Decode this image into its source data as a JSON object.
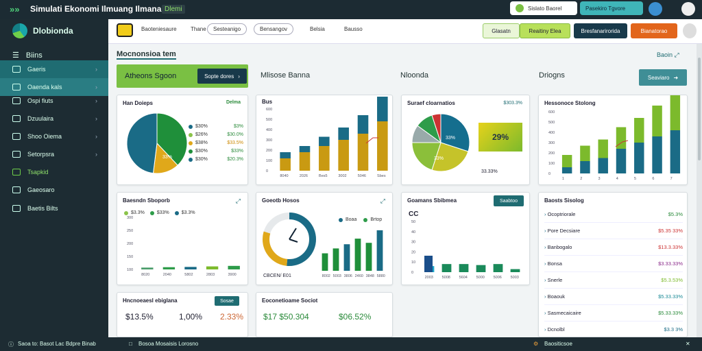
{
  "window": {
    "title": "Simulati Ekonomi Ilmuang Ilmana",
    "badge": "Dlemi"
  },
  "top_right": {
    "pill1": "Sislato Baorel",
    "pill2": "Pasekiro Tgvore"
  },
  "sidebar": {
    "brand": "Dlobionda",
    "menu_label": "Biins",
    "items": [
      {
        "label": "Gaeris"
      },
      {
        "label": "Oaenda kals"
      },
      {
        "label": "Ospi fiuts"
      },
      {
        "label": "Dzuulaira"
      },
      {
        "label": "Shoo Oiema"
      },
      {
        "label": "Setorpsra"
      },
      {
        "label": "Tsapkid"
      },
      {
        "label": "Gaeosaro"
      },
      {
        "label": "Baetis Bilts"
      }
    ]
  },
  "toolbar": {
    "tabs": [
      "Baoteniesaure",
      "Thane",
      "Sesteanigo",
      "Bensangov",
      "Belsia",
      "Bausso"
    ],
    "btn1": "Glasatn",
    "btn2": "Reaitiny Elea",
    "btn3": "Bresfanarirorida",
    "btn4": "Bianatorao"
  },
  "main": {
    "title": "Mocnonsioa tem",
    "action": "Baoin",
    "banner": {
      "label": "Atheons Sgoon",
      "button": "Sopte dores"
    },
    "sec2": "Mlisose Banna",
    "sec3": "Nloonda",
    "sec4": "Driogns",
    "sec4_btn": "Seaviaro"
  },
  "cards": {
    "pie1": {
      "title": "Han Doieps",
      "tag": "Delma",
      "center": "33%",
      "legend": [
        {
          "l": "$30%",
          "v": "$3%"
        },
        {
          "l": "$26%",
          "v": "$30.0%"
        },
        {
          "l": "$38%",
          "v": "$33.5%"
        },
        {
          "l": "$30%",
          "v": "$33%"
        },
        {
          "l": "$30%",
          "v": "$20.3%"
        }
      ]
    },
    "bar1": {
      "title": "Bus"
    },
    "pie2": {
      "title": "Suraef cloarnatios",
      "tag": "$303.3%",
      "center1": "33%",
      "center2": "33%",
      "badge": "29%",
      "foot": "33.33%"
    },
    "bar2": {
      "title": "Hessonoce Stolong"
    },
    "bar3": {
      "title": "Baesndn Sboporb",
      "l1": "$3.3%",
      "l2": "$33%",
      "l3": "$3.3%"
    },
    "donut": {
      "title": "Goeotb Hosos",
      "l1": "Boaa",
      "l2": "Brtop",
      "foot": "CBCEN/ E01"
    },
    "bar4": {
      "title": "Goamans Sbibmea",
      "btn": "Saabtoo",
      "lead": "CC"
    },
    "list": {
      "title": "Baosts Sisolog",
      "rows": [
        {
          "l": "Ocoptriorale",
          "v": "$5.3%"
        },
        {
          "l": "Pore Decsiare",
          "v": "$5.35 33%"
        },
        {
          "l": "Banbogalo",
          "v": "$13.3.33%"
        },
        {
          "l": "Bonsa",
          "v": "$3.33.33%"
        },
        {
          "l": "Snerle",
          "v": "$5.3.53%"
        },
        {
          "l": "Boaouk",
          "v": "$5.33.33%"
        },
        {
          "l": "Sasmecaicaire",
          "v": "$5.33.33%"
        },
        {
          "l": "Dcnolbl",
          "v": "$3.3 3%"
        }
      ]
    },
    "kpi1": {
      "title": "Hncnoeaesl ebiglana",
      "btn": "Sosae",
      "a": "$13.5%",
      "b": "1,00%",
      "c": "2.33%"
    },
    "kpi2": {
      "title": "Eoconetioame Sociot",
      "a": "$17 $50.304",
      "b": "$06.52%"
    }
  },
  "statusbar": {
    "left": "Saoa to: Basot Lac Bdpre Binab",
    "mid": "Bosoa Mosaisis Lorosno",
    "right": "Baositicsoe"
  },
  "chart_data": [
    {
      "type": "pie",
      "title": "Han Doieps",
      "values": [
        38,
        14,
        48
      ],
      "colors": [
        "#1f8f3a",
        "#e0a81a",
        "#1a6b86"
      ]
    },
    {
      "type": "bar",
      "title": "Bus",
      "categories": [
        "8040",
        "2026",
        "Bes5",
        "3002",
        "5046",
        "Sbes"
      ],
      "series": [
        {
          "name": "a",
          "values": [
            2,
            3,
            4,
            5,
            6,
            8
          ]
        },
        {
          "name": "b",
          "values": [
            1,
            1,
            1.5,
            2,
            3,
            4
          ]
        }
      ],
      "ylim": [
        0,
        10
      ]
    },
    {
      "type": "pie",
      "title": "Suraef cloarnatios",
      "values": [
        30,
        25,
        20,
        10,
        10,
        5
      ],
      "colors": [
        "#156e8e",
        "#c5c32a",
        "#8bbf3a",
        "#9aa",
        "#2e9c4a",
        "#c33"
      ]
    },
    {
      "type": "bar",
      "title": "Hessonoce Stolong",
      "categories": [
        "1",
        "2",
        "3",
        "4",
        "5",
        "6",
        "7"
      ],
      "series": [
        {
          "name": "a",
          "values": [
            1,
            2,
            2.5,
            4,
            5,
            6,
            7
          ]
        },
        {
          "name": "b",
          "values": [
            2,
            2.5,
            3,
            3.5,
            4,
            5,
            6
          ]
        }
      ],
      "ylim": [
        0,
        10
      ]
    },
    {
      "type": "bar",
      "title": "Baesndn Sboporb",
      "categories": [
        "8020",
        "2040",
        "5802",
        "2803",
        "3900"
      ],
      "values": [
        3.5,
        4.3,
        4.8,
        5.8,
        6.8
      ],
      "ylim": [
        0,
        100
      ]
    },
    {
      "type": "bar",
      "title": "Goeotb Hosos",
      "categories": [
        "8002",
        "5003",
        "3806",
        "2460",
        "3848",
        "5880"
      ],
      "values": [
        2.5,
        3.2,
        3.8,
        4.6,
        4,
        5.8
      ]
    },
    {
      "type": "bar",
      "title": "Goamans Sbibmea",
      "categories": [
        "2003",
        "5008",
        "5604",
        "5000",
        "5006",
        "5003"
      ],
      "values": [
        6,
        8,
        8,
        7,
        8,
        3
      ],
      "ylim": [
        0,
        50
      ]
    }
  ]
}
